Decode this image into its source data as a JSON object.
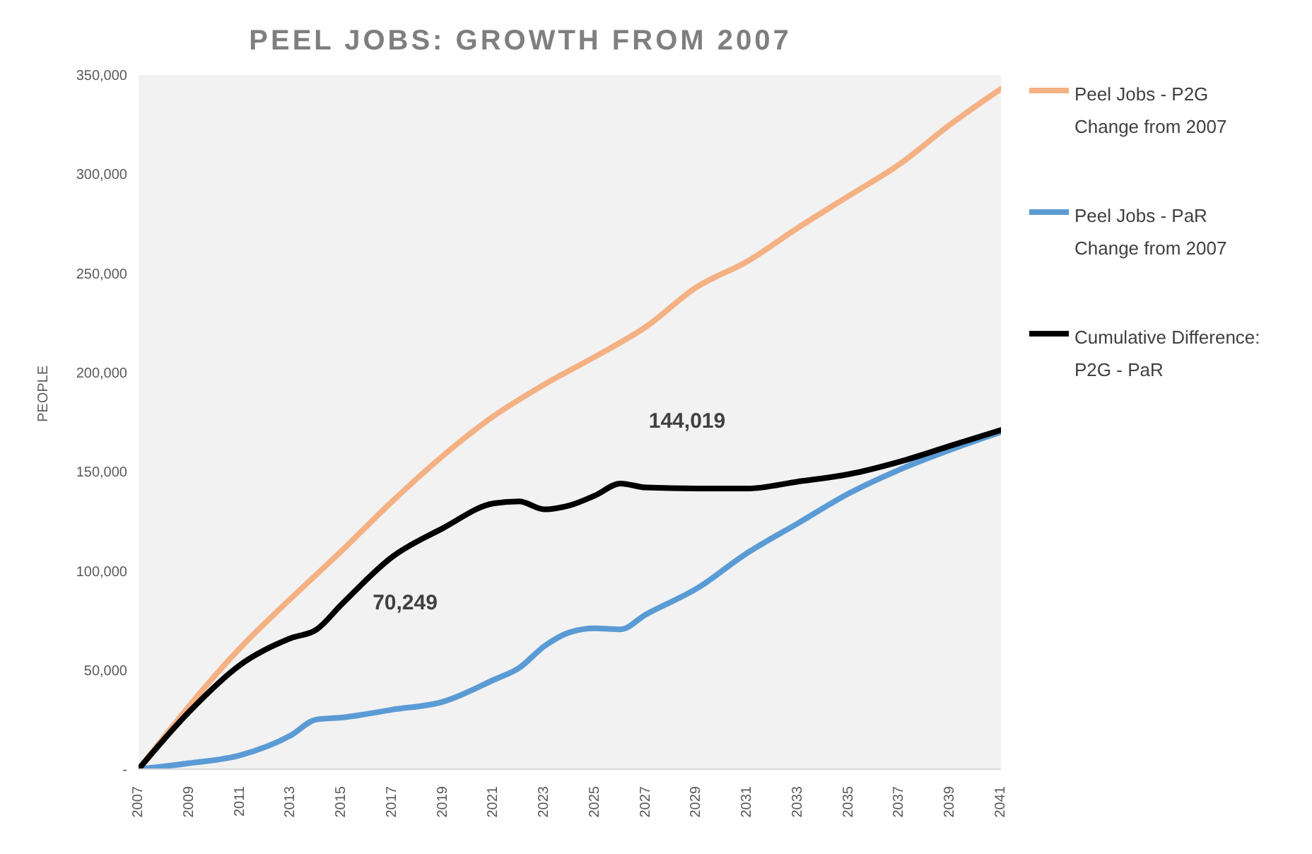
{
  "chart_data": {
    "type": "line",
    "title": "PEEL JOBS: GROWTH FROM 2007",
    "ylabel": "PEOPLE",
    "xlim": [
      2007,
      2041
    ],
    "xticks": [
      2007,
      2009,
      2011,
      2013,
      2015,
      2017,
      2019,
      2021,
      2023,
      2025,
      2027,
      2029,
      2031,
      2033,
      2035,
      2037,
      2039,
      2041
    ],
    "ylim": [
      0,
      350000
    ],
    "yticks": [
      {
        "value": 0,
        "label": "-"
      },
      {
        "value": 50000,
        "label": "50,000"
      },
      {
        "value": 100000,
        "label": "100,000"
      },
      {
        "value": 150000,
        "label": "150,000"
      },
      {
        "value": 200000,
        "label": "200,000"
      },
      {
        "value": 250000,
        "label": "250,000"
      },
      {
        "value": 300000,
        "label": "300,000"
      },
      {
        "value": 350000,
        "label": "350,000"
      }
    ],
    "grid": false,
    "legend": "right",
    "marker": "none",
    "line_style": "solid",
    "series": [
      {
        "name": "Peel Jobs - P2G Change from 2007",
        "color": "#f4b183",
        "x": [
          2007,
          2011,
          2013,
          2015,
          2017,
          2019,
          2021,
          2023,
          2025,
          2027,
          2029,
          2031,
          2033,
          2035,
          2037,
          2039,
          2041
        ],
        "values": [
          0,
          61000,
          86000,
          110000,
          135000,
          158000,
          178000,
          194000,
          208000,
          223000,
          243000,
          256000,
          273000,
          289000,
          305000,
          325000,
          343000
        ]
      },
      {
        "name": "Peel Jobs - PaR Change from 2007",
        "color": "#5b9bd5",
        "x": [
          2007,
          2009,
          2011,
          2013,
          2014,
          2015,
          2017,
          2019,
          2021,
          2022,
          2023,
          2024,
          2025,
          2026,
          2027,
          2029,
          2031,
          2033,
          2035,
          2037,
          2039,
          2041
        ],
        "values": [
          0,
          3000,
          7000,
          17000,
          25000,
          26000,
          30000,
          34000,
          45000,
          51000,
          62000,
          69000,
          71000,
          70500,
          78000,
          91000,
          109000,
          124000,
          139000,
          151000,
          161000,
          170000
        ]
      },
      {
        "name": "Cumulative Difference: P2G - PaR",
        "color": "#000000",
        "x": [
          2007,
          2009,
          2011,
          2013,
          2014,
          2015,
          2017,
          2019,
          2021,
          2022,
          2023,
          2024,
          2025,
          2026,
          2027,
          2029,
          2031,
          2033,
          2035,
          2037,
          2039,
          2041
        ],
        "values": [
          0,
          29000,
          52500,
          66000,
          70249,
          83000,
          107000,
          121500,
          134000,
          135000,
          131000,
          133000,
          138000,
          144019,
          142000,
          141500,
          141500,
          145000,
          148700,
          155000,
          163000,
          171000
        ]
      }
    ],
    "annotations": [
      {
        "text": "70,249",
        "x": 2014,
        "y": 70249
      },
      {
        "text": "144,019",
        "x": 2026,
        "y": 144019
      }
    ]
  }
}
